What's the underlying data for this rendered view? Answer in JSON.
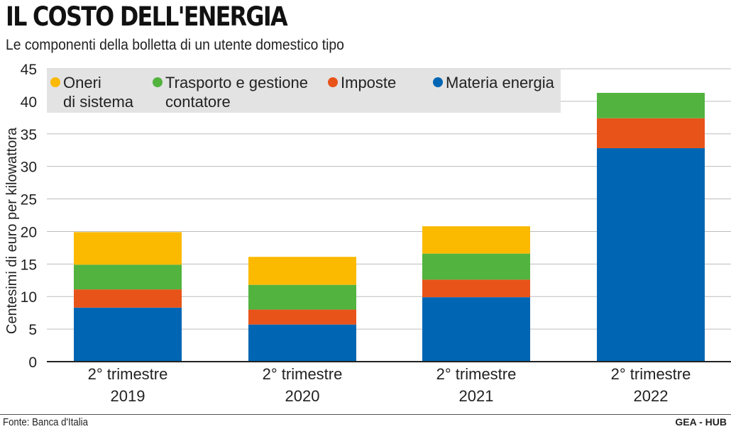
{
  "header": {
    "title": "IL COSTO DELL'ENERGIA",
    "subtitle": "Le componenti della bolletta di un utente domestico tipo"
  },
  "footer": {
    "source": "Fonte: Banca d'Italia",
    "credit": "GEA - HUB"
  },
  "colors": {
    "oneri": "#fbb900",
    "trasporto": "#52b33f",
    "imposte": "#e8531a",
    "materia": "#0066b3",
    "legend_bg": "#e3e3e3",
    "grid": "#bdbdbd"
  },
  "chart_data": {
    "type": "bar",
    "stacked": true,
    "categories": [
      [
        "2° trimestre",
        "2019"
      ],
      [
        "2° trimestre",
        "2020"
      ],
      [
        "2° trimestre",
        "2021"
      ],
      [
        "2° trimestre",
        "2022"
      ]
    ],
    "series": [
      {
        "name": "Materia energia",
        "key": "materia",
        "values": [
          8.3,
          5.7,
          9.9,
          32.8
        ]
      },
      {
        "name": "Imposte",
        "key": "imposte",
        "values": [
          2.8,
          2.3,
          2.7,
          4.6
        ]
      },
      {
        "name": "Trasporto e gestione contatore",
        "key": "trasporto",
        "values": [
          3.8,
          3.8,
          4.0,
          3.9
        ]
      },
      {
        "name": "Oneri di sistema",
        "key": "oneri",
        "values": [
          5.0,
          4.3,
          4.2,
          0
        ]
      }
    ],
    "legend": [
      {
        "key": "oneri",
        "lines": [
          "Oneri",
          "di sistema"
        ]
      },
      {
        "key": "trasporto",
        "lines": [
          "Trasporto e gestione",
          "contatore"
        ]
      },
      {
        "key": "imposte",
        "lines": [
          "Imposte"
        ]
      },
      {
        "key": "materia",
        "lines": [
          "Materia energia"
        ]
      }
    ],
    "legend_position": "top",
    "ylabel": "Centesimi di euro per kilowattora",
    "xlabel": "",
    "ylim": [
      0,
      45
    ],
    "yticks": [
      0,
      5,
      10,
      15,
      20,
      25,
      30,
      35,
      40,
      45
    ],
    "grid": true
  }
}
